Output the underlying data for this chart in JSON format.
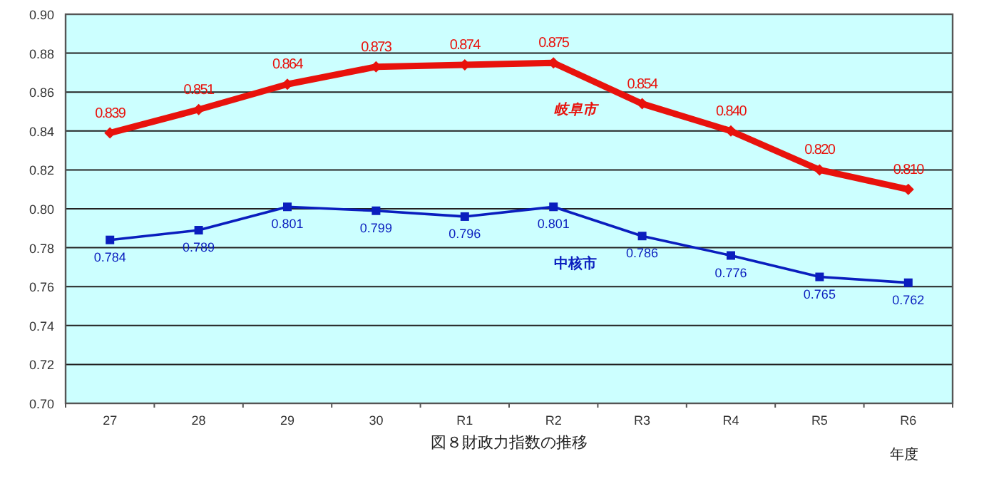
{
  "chart_data": {
    "type": "line",
    "title": "図８財政力指数の推移",
    "xlabel": "年度",
    "categories": [
      "27",
      "28",
      "29",
      "30",
      "R1",
      "R2",
      "R3",
      "R4",
      "R5",
      "R6"
    ],
    "series": [
      {
        "name": "岐阜市",
        "color": "#e8120c",
        "marker": "diamond",
        "values": [
          0.839,
          0.851,
          0.864,
          0.873,
          0.874,
          0.875,
          0.854,
          0.84,
          0.82,
          0.81
        ],
        "value_labels": [
          "0.839",
          "0.851",
          "0.864",
          "0.873",
          "0.874",
          "0.875",
          "0.854",
          "0.840",
          "0.820",
          "0.810"
        ]
      },
      {
        "name": "中核市",
        "color": "#0a1ebe",
        "marker": "square",
        "values": [
          0.784,
          0.789,
          0.801,
          0.799,
          0.796,
          0.801,
          0.786,
          0.776,
          0.765,
          0.762
        ],
        "value_labels": [
          "0.784",
          "0.789",
          "0.801",
          "0.799",
          "0.796",
          "0.801",
          "0.786",
          "0.776",
          "0.765",
          "0.762"
        ]
      }
    ],
    "ylim": [
      0.7,
      0.9
    ],
    "yticks": [
      {
        "value": 0.7,
        "label": "0.70"
      },
      {
        "value": 0.72,
        "label": "0.72"
      },
      {
        "value": 0.74,
        "label": "0.74"
      },
      {
        "value": 0.76,
        "label": "0.76"
      },
      {
        "value": 0.78,
        "label": "0.78"
      },
      {
        "value": 0.8,
        "label": "0.80"
      },
      {
        "value": 0.82,
        "label": "0.82"
      },
      {
        "value": 0.84,
        "label": "0.84"
      },
      {
        "value": 0.86,
        "label": "0.86"
      },
      {
        "value": 0.88,
        "label": "0.88"
      },
      {
        "value": 0.9,
        "label": "0.90"
      }
    ],
    "grid": "y",
    "line_style": "solid"
  }
}
